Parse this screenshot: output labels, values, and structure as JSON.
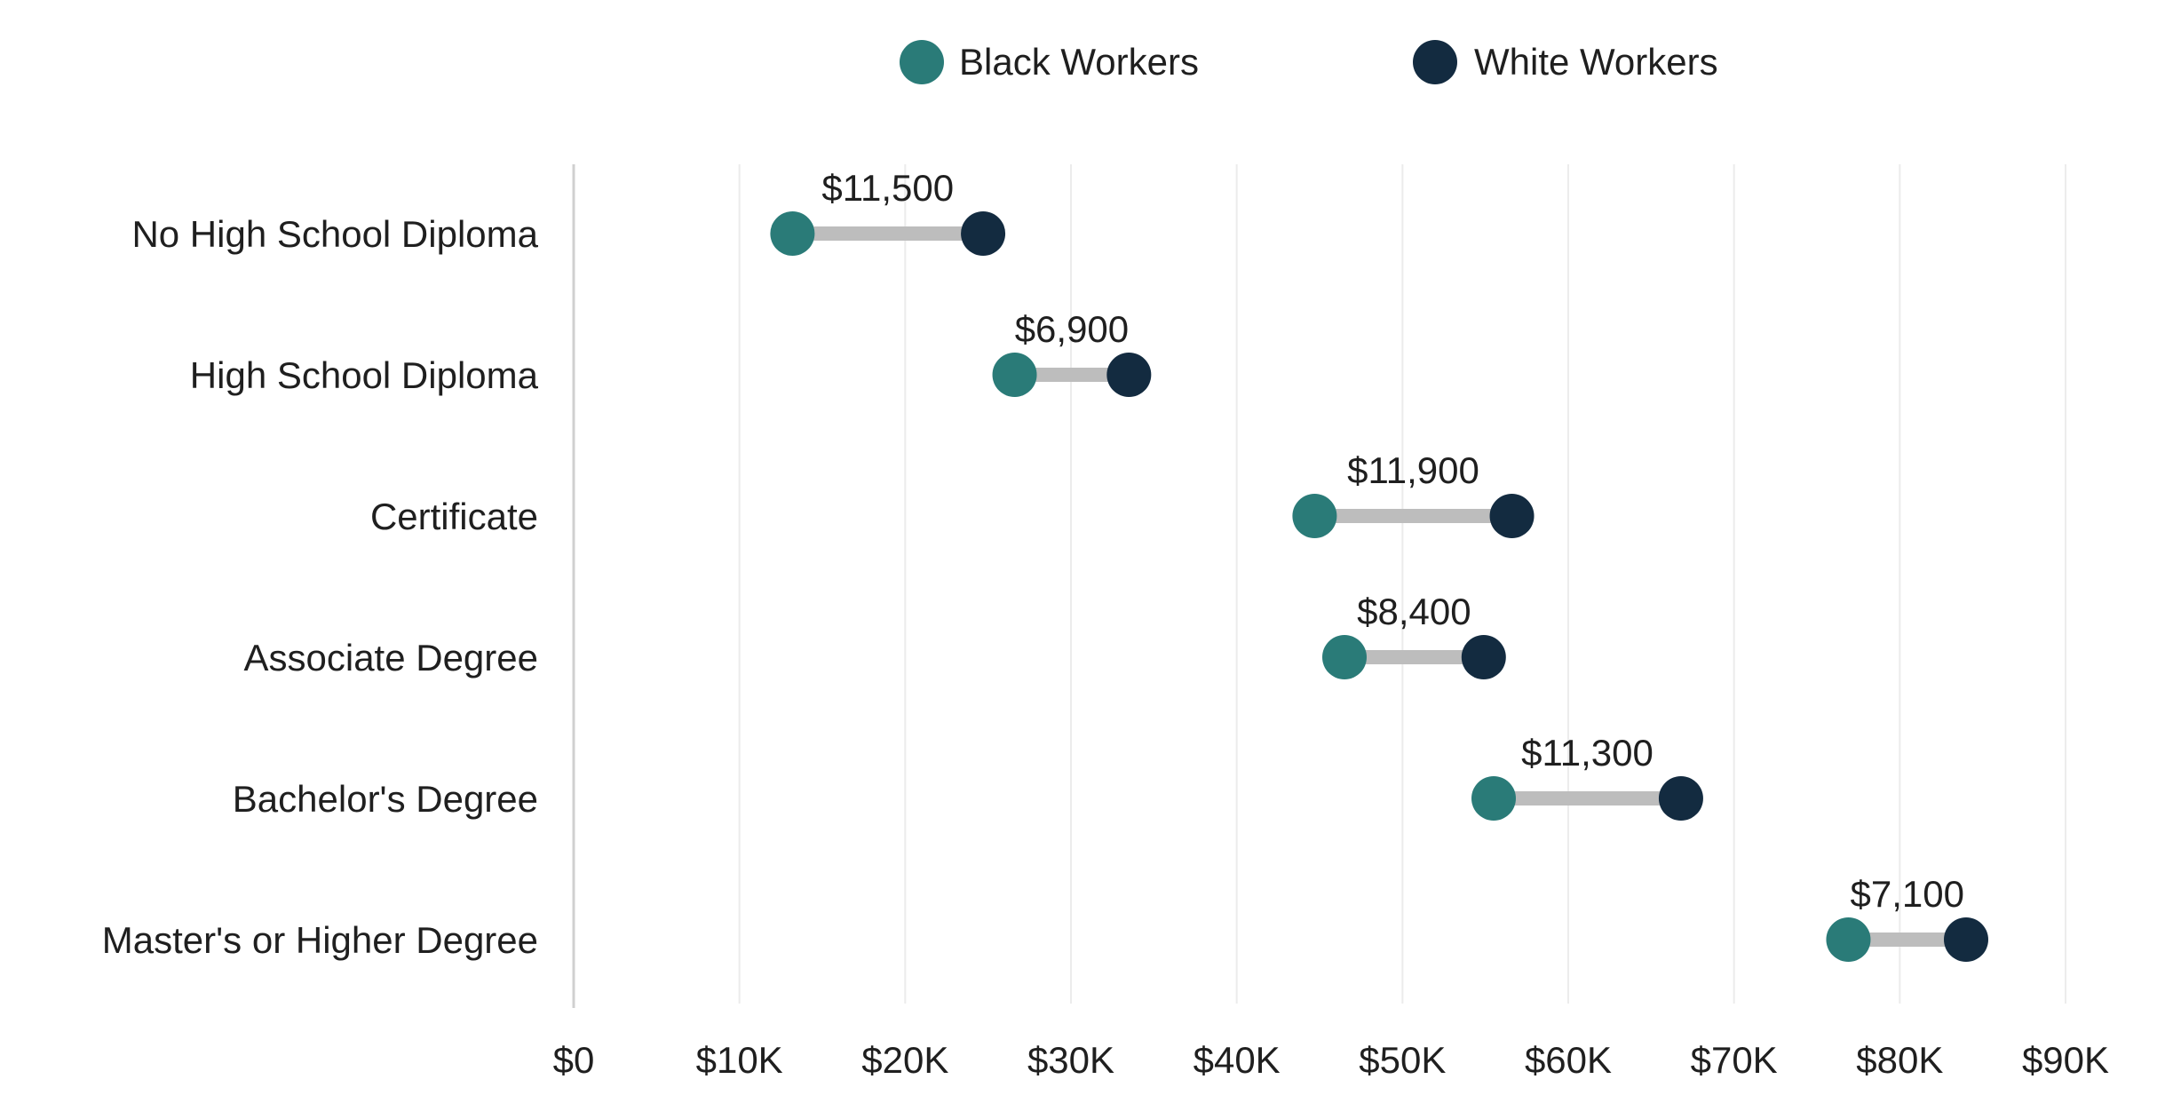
{
  "chart_data": {
    "type": "dumbbell",
    "title": "",
    "xlabel": "",
    "ylabel": "",
    "xlim": [
      0,
      90000
    ],
    "legend_position": "top-center",
    "grid": "vertical",
    "colors": {
      "black_workers": "#2a7b78",
      "white_workers": "#132b40",
      "connector": "#bdbdbd"
    },
    "series": [
      {
        "name": "Black Workers",
        "key": "black"
      },
      {
        "name": "White Workers",
        "key": "white"
      }
    ],
    "x_ticks": [
      0,
      10000,
      20000,
      30000,
      40000,
      50000,
      60000,
      70000,
      80000,
      90000
    ],
    "x_tick_labels": [
      "$0",
      "$10K",
      "$20K",
      "$30K",
      "$40K",
      "$50K",
      "$60K",
      "$70K",
      "$80K",
      "$90K"
    ],
    "rows": [
      {
        "category": "No High School Diploma",
        "black": 13200,
        "white": 24700,
        "gap_label": "$11,500"
      },
      {
        "category": "High School Diploma",
        "black": 26600,
        "white": 33500,
        "gap_label": "$6,900"
      },
      {
        "category": "Certificate",
        "black": 44700,
        "white": 56600,
        "gap_label": "$11,900"
      },
      {
        "category": "Associate Degree",
        "black": 46500,
        "white": 54900,
        "gap_label": "$8,400"
      },
      {
        "category": "Bachelor's Degree",
        "black": 55500,
        "white": 66800,
        "gap_label": "$11,300"
      },
      {
        "category": "Master's or Higher Degree",
        "black": 76900,
        "white": 84000,
        "gap_label": "$7,100"
      }
    ]
  }
}
